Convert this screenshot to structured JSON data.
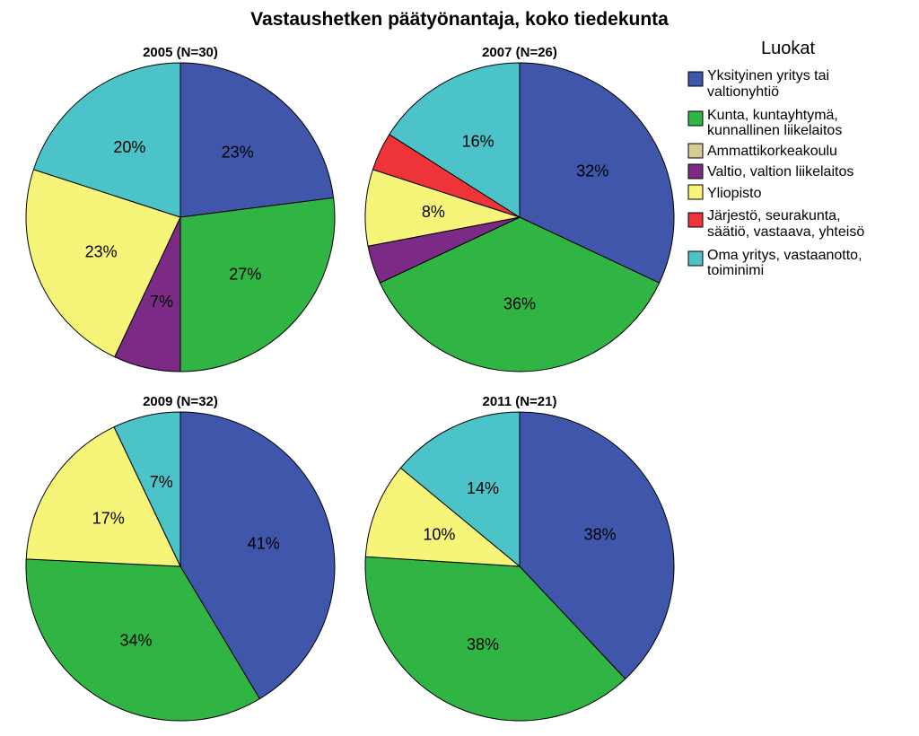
{
  "chart_data": {
    "type": "pie",
    "title": "Vastaushetken päätyönantaja, koko tiedekunta",
    "legend": {
      "title": "Luokat",
      "placement": "right",
      "items": [
        {
          "key": "yksityinen",
          "lines": [
            "Yksityinen yritys tai",
            "valtionyhtiö"
          ],
          "color": "#3f56aa"
        },
        {
          "key": "kunta",
          "lines": [
            "Kunta, kuntayhtymä,",
            "kunnallinen liikelaitos"
          ],
          "color": "#30b443"
        },
        {
          "key": "amk",
          "lines": [
            "Ammattikorkeakoulu"
          ],
          "color": "#d6cc94"
        },
        {
          "key": "valtio",
          "lines": [
            "Valtio, valtion liikelaitos"
          ],
          "color": "#7b2b85"
        },
        {
          "key": "yliopisto",
          "lines": [
            "Yliopisto"
          ],
          "color": "#f7f47a"
        },
        {
          "key": "jarjesto",
          "lines": [
            "Järjestö, seurakunta,",
            "säätiö, vastaava, yhteisö"
          ],
          "color": "#ee3339"
        },
        {
          "key": "oma",
          "lines": [
            "Oma yritys, vastaanotto,",
            "toiminimi"
          ],
          "color": "#4cc3c8"
        }
      ]
    },
    "pies": [
      {
        "title": "2005 (N=30)",
        "slices": [
          {
            "key": "yksityinen",
            "value": 23,
            "label": "23%"
          },
          {
            "key": "kunta",
            "value": 27,
            "label": "27%"
          },
          {
            "key": "valtio",
            "value": 7,
            "label": "7%"
          },
          {
            "key": "yliopisto",
            "value": 23,
            "label": "23%"
          },
          {
            "key": "oma",
            "value": 20,
            "label": "20%"
          }
        ]
      },
      {
        "title": "2007 (N=26)",
        "slices": [
          {
            "key": "yksityinen",
            "value": 32,
            "label": "32%"
          },
          {
            "key": "kunta",
            "value": 36,
            "label": "36%"
          },
          {
            "key": "valtio",
            "value": 4,
            "label": ""
          },
          {
            "key": "yliopisto",
            "value": 8,
            "label": "8%"
          },
          {
            "key": "jarjesto",
            "value": 4,
            "label": ""
          },
          {
            "key": "oma",
            "value": 16,
            "label": "16%"
          }
        ]
      },
      {
        "title": "2009 (N=32)",
        "slices": [
          {
            "key": "yksityinen",
            "value": 41,
            "label": "41%"
          },
          {
            "key": "kunta",
            "value": 34,
            "label": "34%"
          },
          {
            "key": "yliopisto",
            "value": 17,
            "label": "17%"
          },
          {
            "key": "oma",
            "value": 7,
            "label": "7%"
          }
        ]
      },
      {
        "title": "2011 (N=21)",
        "slices": [
          {
            "key": "yksityinen",
            "value": 38,
            "label": "38%"
          },
          {
            "key": "kunta",
            "value": 38,
            "label": "38%"
          },
          {
            "key": "yliopisto",
            "value": 10,
            "label": "10%"
          },
          {
            "key": "oma",
            "value": 14,
            "label": "14%"
          }
        ]
      }
    ]
  }
}
